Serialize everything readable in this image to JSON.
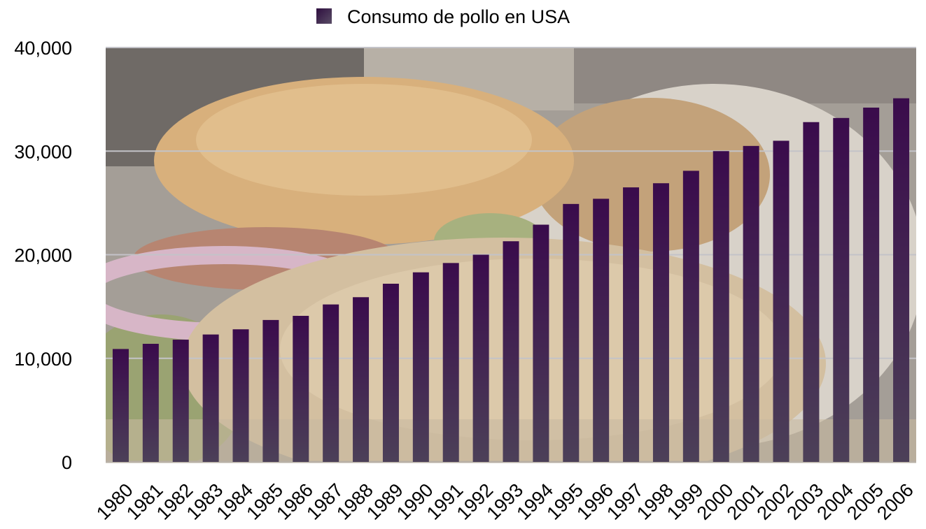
{
  "chart_data": {
    "type": "bar",
    "title": "",
    "xlabel": "",
    "ylabel": "",
    "legend": {
      "position": "top-center"
    },
    "grid": true,
    "ylim": [
      0,
      40000
    ],
    "y_ticks": [
      0,
      10000,
      20000,
      30000,
      40000
    ],
    "y_tick_labels": [
      "0",
      "10,000",
      "20,000",
      "30,000",
      "40,000"
    ],
    "categories": [
      "1980",
      "1981",
      "1982",
      "1983",
      "1984",
      "1985",
      "1986",
      "1987",
      "1988",
      "1989",
      "1990",
      "1991",
      "1992",
      "1993",
      "1994",
      "1995",
      "1996",
      "1997",
      "1998",
      "1999",
      "2000",
      "2001",
      "2002",
      "2003",
      "2004",
      "2005",
      "2006"
    ],
    "series": [
      {
        "name": "Consumo de pollo en USA",
        "color": "#3b1a4a",
        "values": [
          10900,
          11400,
          11800,
          12300,
          12800,
          13700,
          14100,
          15200,
          15900,
          17200,
          18300,
          19200,
          20000,
          21300,
          22900,
          24900,
          25400,
          26500,
          26900,
          28100,
          30000,
          30500,
          31000,
          32800,
          33200,
          34200,
          35100
        ]
      }
    ],
    "background": "photo of a chicken sandwich with fries, washed out behind the plot"
  }
}
